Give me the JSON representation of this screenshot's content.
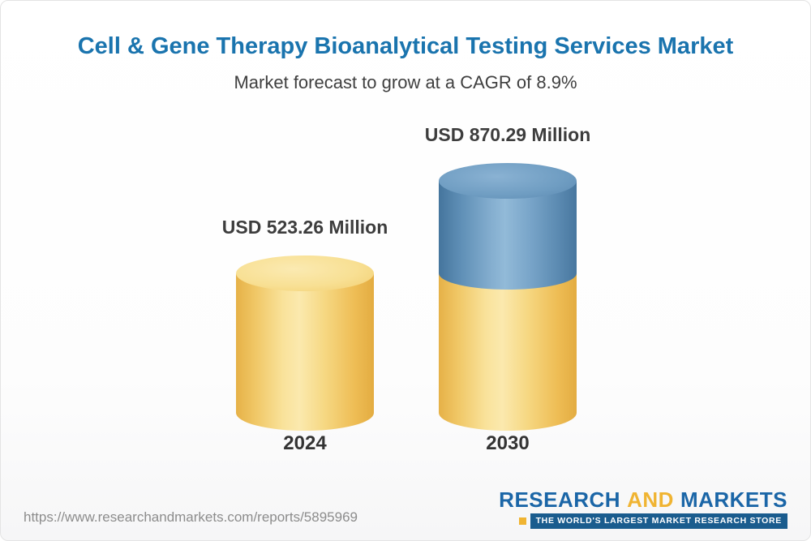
{
  "chart_data": {
    "type": "bar",
    "subtype": "3d-cylinder-column",
    "title": "Cell & Gene Therapy Bioanalytical Testing Services Market",
    "subtitle": "Market forecast to grow at a CAGR of 8.9%",
    "cagr": "8.9%",
    "unit": "USD Million",
    "categories": [
      "2024",
      "2030"
    ],
    "values": [
      523.26,
      870.29
    ],
    "value_labels": [
      "USD 523.26 Million",
      "USD 870.29 Million"
    ],
    "series_note": "2030 column shows 2024 base value in gold with growth portion stacked in blue",
    "legend": "none",
    "grid": "off",
    "colors": {
      "base_gold": "#f2c45f",
      "growth_blue": "#6b9cc3",
      "title_blue": "#1a74ae"
    }
  },
  "footer": {
    "url": "https://www.researchandmarkets.com/reports/5895969",
    "logo": {
      "word1": "RESEARCH",
      "word2": "AND",
      "word3": "MARKETS",
      "tagline": "THE WORLD'S LARGEST MARKET RESEARCH STORE"
    }
  }
}
